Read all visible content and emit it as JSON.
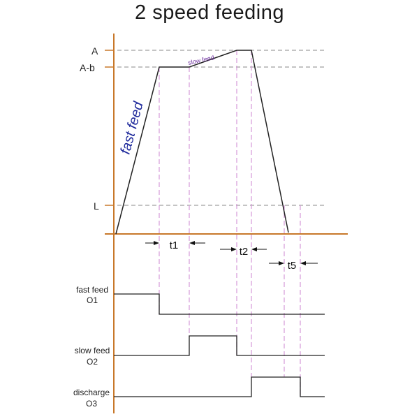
{
  "title": "2 speed feeding",
  "levels": {
    "a": "A",
    "a_minus_b": "A-b",
    "l": "L"
  },
  "curve_labels": {
    "fast_feed": "fast feed",
    "slow_feed": "slow feed"
  },
  "intervals": {
    "t1": "t1",
    "t2": "t2",
    "t5": "t5"
  },
  "signals": [
    {
      "name": "fast feed",
      "code": "O1"
    },
    {
      "name": "slow feed",
      "code": "O2"
    },
    {
      "name": "discharge",
      "code": "O3"
    }
  ],
  "colors": {
    "axis": "#c8782a",
    "curve": "#222222",
    "dashed_level": "#8a8a8a",
    "timing_guide": "#d59ad9",
    "fast_feed_text": "#1f2a9c",
    "slow_feed_text": "#6a2a9c"
  }
}
